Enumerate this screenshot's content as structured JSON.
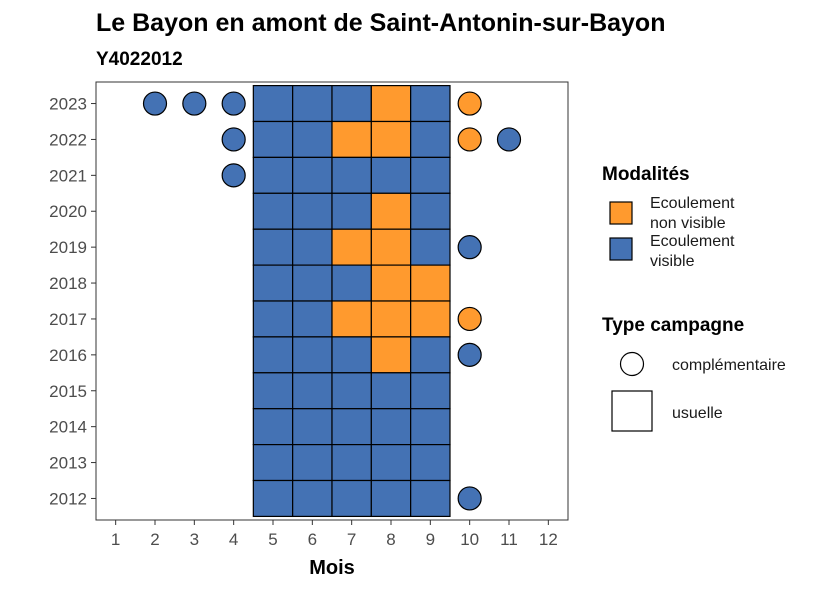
{
  "chart_data": {
    "type": "heatmap",
    "title": "Le Bayon en amont de Saint-Antonin-sur-Bayon",
    "subtitle": "Y4022012",
    "xlabel": "Mois",
    "ylabel": "",
    "x_ticks": [
      1,
      2,
      3,
      4,
      5,
      6,
      7,
      8,
      9,
      10,
      11,
      12
    ],
    "y_ticks": [
      2012,
      2013,
      2014,
      2015,
      2016,
      2017,
      2018,
      2019,
      2020,
      2021,
      2022,
      2023
    ],
    "xlim": [
      0.5,
      12.5
    ],
    "ylim": [
      2011.4,
      2023.6
    ],
    "colors": {
      "ecoulement_non_visible": "#FF9A2E",
      "ecoulement_visible": "#4472B4"
    },
    "legend_modalites": {
      "title": "Modalités",
      "items": [
        {
          "key": "ecoulement_non_visible",
          "line1": "Ecoulement",
          "line2": "non visible"
        },
        {
          "key": "ecoulement_visible",
          "line1": "Ecoulement",
          "line2": "visible"
        }
      ]
    },
    "legend_campagne": {
      "title": "Type campagne",
      "items": [
        {
          "shape": "circle",
          "label": "complémentaire"
        },
        {
          "shape": "square",
          "label": "usuelle"
        }
      ]
    },
    "points": [
      {
        "year": 2023,
        "month": 2,
        "type": "complémentaire",
        "status": "ecoulement_visible"
      },
      {
        "year": 2023,
        "month": 3,
        "type": "complémentaire",
        "status": "ecoulement_visible"
      },
      {
        "year": 2023,
        "month": 4,
        "type": "complémentaire",
        "status": "ecoulement_visible"
      },
      {
        "year": 2023,
        "month": 5,
        "type": "usuelle",
        "status": "ecoulement_visible"
      },
      {
        "year": 2023,
        "month": 6,
        "type": "usuelle",
        "status": "ecoulement_visible"
      },
      {
        "year": 2023,
        "month": 7,
        "type": "usuelle",
        "status": "ecoulement_visible"
      },
      {
        "year": 2023,
        "month": 8,
        "type": "usuelle",
        "status": "ecoulement_non_visible"
      },
      {
        "year": 2023,
        "month": 9,
        "type": "usuelle",
        "status": "ecoulement_visible"
      },
      {
        "year": 2023,
        "month": 10,
        "type": "complémentaire",
        "status": "ecoulement_non_visible"
      },
      {
        "year": 2022,
        "month": 4,
        "type": "complémentaire",
        "status": "ecoulement_visible"
      },
      {
        "year": 2022,
        "month": 5,
        "type": "usuelle",
        "status": "ecoulement_visible"
      },
      {
        "year": 2022,
        "month": 6,
        "type": "usuelle",
        "status": "ecoulement_visible"
      },
      {
        "year": 2022,
        "month": 7,
        "type": "usuelle",
        "status": "ecoulement_non_visible"
      },
      {
        "year": 2022,
        "month": 8,
        "type": "usuelle",
        "status": "ecoulement_non_visible"
      },
      {
        "year": 2022,
        "month": 9,
        "type": "usuelle",
        "status": "ecoulement_visible"
      },
      {
        "year": 2022,
        "month": 10,
        "type": "complémentaire",
        "status": "ecoulement_non_visible"
      },
      {
        "year": 2022,
        "month": 11,
        "type": "complémentaire",
        "status": "ecoulement_visible"
      },
      {
        "year": 2021,
        "month": 4,
        "type": "complémentaire",
        "status": "ecoulement_visible"
      },
      {
        "year": 2021,
        "month": 5,
        "type": "usuelle",
        "status": "ecoulement_visible"
      },
      {
        "year": 2021,
        "month": 6,
        "type": "usuelle",
        "status": "ecoulement_visible"
      },
      {
        "year": 2021,
        "month": 7,
        "type": "usuelle",
        "status": "ecoulement_visible"
      },
      {
        "year": 2021,
        "month": 8,
        "type": "usuelle",
        "status": "ecoulement_visible"
      },
      {
        "year": 2021,
        "month": 9,
        "type": "usuelle",
        "status": "ecoulement_visible"
      },
      {
        "year": 2020,
        "month": 5,
        "type": "usuelle",
        "status": "ecoulement_visible"
      },
      {
        "year": 2020,
        "month": 6,
        "type": "usuelle",
        "status": "ecoulement_visible"
      },
      {
        "year": 2020,
        "month": 7,
        "type": "usuelle",
        "status": "ecoulement_visible"
      },
      {
        "year": 2020,
        "month": 8,
        "type": "usuelle",
        "status": "ecoulement_non_visible"
      },
      {
        "year": 2020,
        "month": 9,
        "type": "usuelle",
        "status": "ecoulement_visible"
      },
      {
        "year": 2019,
        "month": 5,
        "type": "usuelle",
        "status": "ecoulement_visible"
      },
      {
        "year": 2019,
        "month": 6,
        "type": "usuelle",
        "status": "ecoulement_visible"
      },
      {
        "year": 2019,
        "month": 7,
        "type": "usuelle",
        "status": "ecoulement_non_visible"
      },
      {
        "year": 2019,
        "month": 8,
        "type": "usuelle",
        "status": "ecoulement_non_visible"
      },
      {
        "year": 2019,
        "month": 9,
        "type": "usuelle",
        "status": "ecoulement_visible"
      },
      {
        "year": 2019,
        "month": 10,
        "type": "complémentaire",
        "status": "ecoulement_visible"
      },
      {
        "year": 2018,
        "month": 5,
        "type": "usuelle",
        "status": "ecoulement_visible"
      },
      {
        "year": 2018,
        "month": 6,
        "type": "usuelle",
        "status": "ecoulement_visible"
      },
      {
        "year": 2018,
        "month": 7,
        "type": "usuelle",
        "status": "ecoulement_visible"
      },
      {
        "year": 2018,
        "month": 8,
        "type": "usuelle",
        "status": "ecoulement_non_visible"
      },
      {
        "year": 2018,
        "month": 9,
        "type": "usuelle",
        "status": "ecoulement_non_visible"
      },
      {
        "year": 2017,
        "month": 5,
        "type": "usuelle",
        "status": "ecoulement_visible"
      },
      {
        "year": 2017,
        "month": 6,
        "type": "usuelle",
        "status": "ecoulement_visible"
      },
      {
        "year": 2017,
        "month": 7,
        "type": "usuelle",
        "status": "ecoulement_non_visible"
      },
      {
        "year": 2017,
        "month": 8,
        "type": "usuelle",
        "status": "ecoulement_non_visible"
      },
      {
        "year": 2017,
        "month": 9,
        "type": "usuelle",
        "status": "ecoulement_non_visible"
      },
      {
        "year": 2017,
        "month": 10,
        "type": "complémentaire",
        "status": "ecoulement_non_visible"
      },
      {
        "year": 2016,
        "month": 5,
        "type": "usuelle",
        "status": "ecoulement_visible"
      },
      {
        "year": 2016,
        "month": 6,
        "type": "usuelle",
        "status": "ecoulement_visible"
      },
      {
        "year": 2016,
        "month": 7,
        "type": "usuelle",
        "status": "ecoulement_visible"
      },
      {
        "year": 2016,
        "month": 8,
        "type": "usuelle",
        "status": "ecoulement_non_visible"
      },
      {
        "year": 2016,
        "month": 9,
        "type": "usuelle",
        "status": "ecoulement_visible"
      },
      {
        "year": 2016,
        "month": 10,
        "type": "complémentaire",
        "status": "ecoulement_visible"
      },
      {
        "year": 2015,
        "month": 5,
        "type": "usuelle",
        "status": "ecoulement_visible"
      },
      {
        "year": 2015,
        "month": 6,
        "type": "usuelle",
        "status": "ecoulement_visible"
      },
      {
        "year": 2015,
        "month": 7,
        "type": "usuelle",
        "status": "ecoulement_visible"
      },
      {
        "year": 2015,
        "month": 8,
        "type": "usuelle",
        "status": "ecoulement_visible"
      },
      {
        "year": 2015,
        "month": 9,
        "type": "usuelle",
        "status": "ecoulement_visible"
      },
      {
        "year": 2014,
        "month": 5,
        "type": "usuelle",
        "status": "ecoulement_visible"
      },
      {
        "year": 2014,
        "month": 6,
        "type": "usuelle",
        "status": "ecoulement_visible"
      },
      {
        "year": 2014,
        "month": 7,
        "type": "usuelle",
        "status": "ecoulement_visible"
      },
      {
        "year": 2014,
        "month": 8,
        "type": "usuelle",
        "status": "ecoulement_visible"
      },
      {
        "year": 2014,
        "month": 9,
        "type": "usuelle",
        "status": "ecoulement_visible"
      },
      {
        "year": 2013,
        "month": 5,
        "type": "usuelle",
        "status": "ecoulement_visible"
      },
      {
        "year": 2013,
        "month": 6,
        "type": "usuelle",
        "status": "ecoulement_visible"
      },
      {
        "year": 2013,
        "month": 7,
        "type": "usuelle",
        "status": "ecoulement_visible"
      },
      {
        "year": 2013,
        "month": 8,
        "type": "usuelle",
        "status": "ecoulement_visible"
      },
      {
        "year": 2013,
        "month": 9,
        "type": "usuelle",
        "status": "ecoulement_visible"
      },
      {
        "year": 2012,
        "month": 5,
        "type": "usuelle",
        "status": "ecoulement_visible"
      },
      {
        "year": 2012,
        "month": 6,
        "type": "usuelle",
        "status": "ecoulement_visible"
      },
      {
        "year": 2012,
        "month": 7,
        "type": "usuelle",
        "status": "ecoulement_visible"
      },
      {
        "year": 2012,
        "month": 8,
        "type": "usuelle",
        "status": "ecoulement_visible"
      },
      {
        "year": 2012,
        "month": 9,
        "type": "usuelle",
        "status": "ecoulement_visible"
      },
      {
        "year": 2012,
        "month": 10,
        "type": "complémentaire",
        "status": "ecoulement_visible"
      }
    ]
  }
}
